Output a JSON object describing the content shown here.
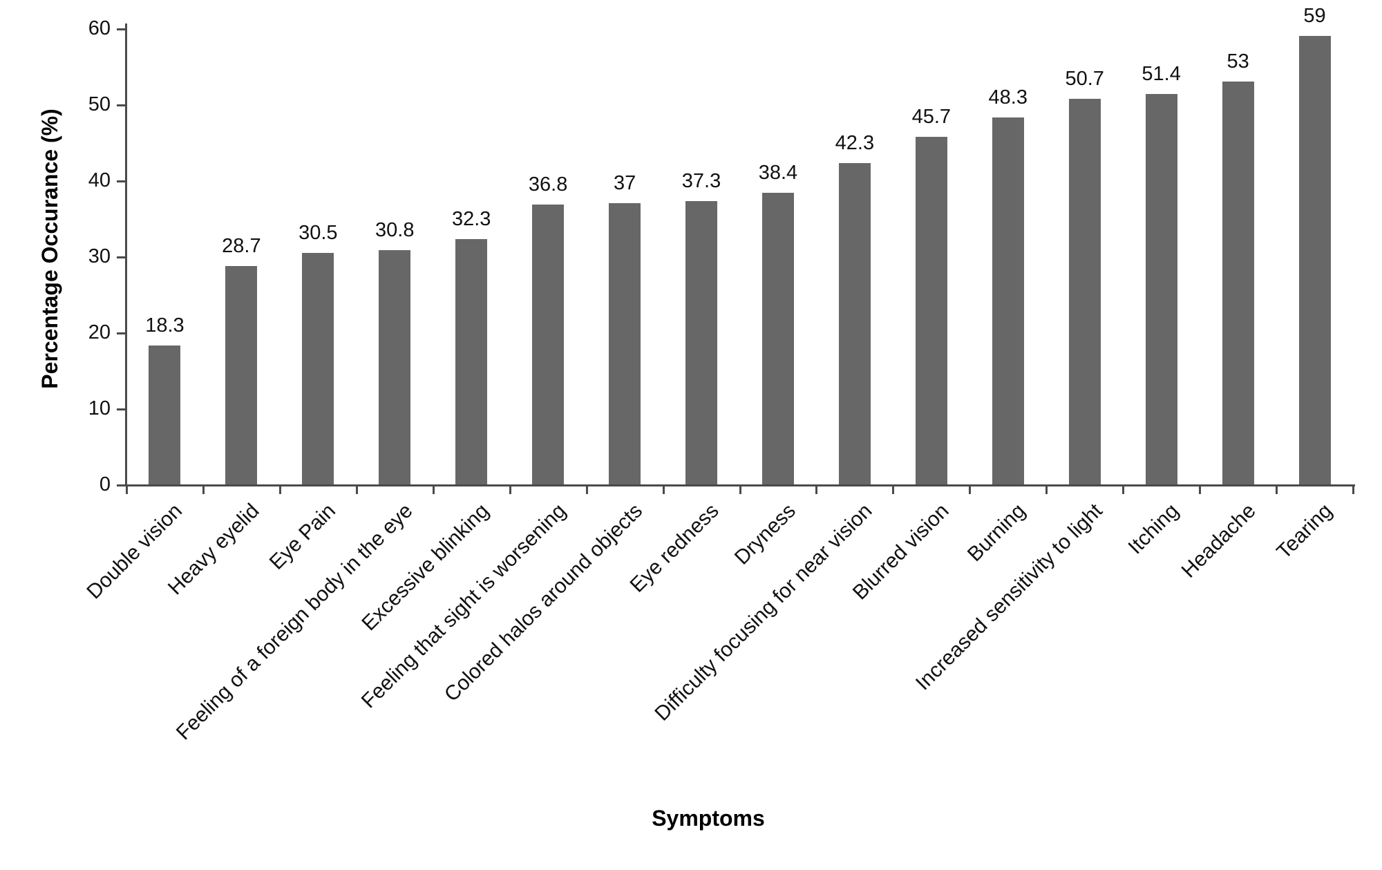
{
  "chart_data": {
    "type": "bar",
    "title": "",
    "xlabel": "Symptoms",
    "ylabel": "Percentage Occurance (%)",
    "categories": [
      "Double vision",
      "Heavy eyelid",
      "Eye Pain",
      "Feeling of a foreign body in the eye",
      "Excessive blinking",
      "Feeling that sight is worsening",
      "Colored halos around objects",
      "Eye redness",
      "Dryness",
      "Difficulty focusing for near vision",
      "Blurred vision",
      "Burning",
      "Increased sensitivity to light",
      "Itching",
      "Headache",
      "Tearing"
    ],
    "values": [
      18.3,
      28.7,
      30.5,
      30.8,
      32.3,
      36.8,
      37,
      37.3,
      38.4,
      42.3,
      45.7,
      48.3,
      50.7,
      51.4,
      53,
      59
    ],
    "value_labels": [
      "18.3",
      "28.7",
      "30.5",
      "30.8",
      "32.3",
      "36.8",
      "37",
      "37.3",
      "38.4",
      "42.3",
      "45.7",
      "48.3",
      "50.7",
      "51.4",
      "53",
      "59"
    ],
    "ylim": [
      0,
      60
    ],
    "yticks": [
      0,
      10,
      20,
      30,
      40,
      50,
      60
    ],
    "grid": "off",
    "legend": "none",
    "category_label_rotation_deg": 45,
    "bar_color": "#676767",
    "axis_color": "#4a4a4a",
    "text_color": "#111111",
    "background_color": "#ffffff"
  }
}
